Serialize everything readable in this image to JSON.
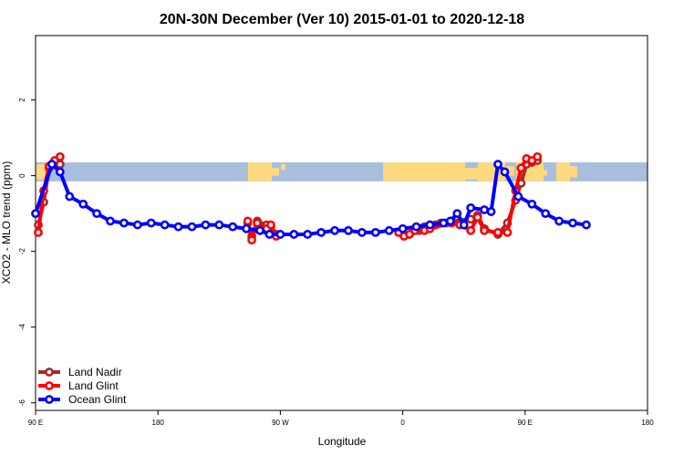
{
  "chart_data": {
    "type": "line",
    "title": "20N-30N December (Ver 10)   2015-01-01 to 2020-12-18",
    "xlabel": "Longitude",
    "ylabel": "XCO2 - MLO trend (ppm)",
    "xlim": [
      90,
      450
    ],
    "ylim": [
      -6.2,
      3.7
    ],
    "x_ticks": [
      {
        "value": 90,
        "label": "90 E"
      },
      {
        "value": 180,
        "label": "180"
      },
      {
        "value": 270,
        "label": "90 W"
      },
      {
        "value": 360,
        "label": "0"
      },
      {
        "value": 450,
        "label": "90 E"
      },
      {
        "value": 540,
        "label": "180"
      }
    ],
    "y_ticks": [
      {
        "value": 2,
        "label": "2"
      },
      {
        "value": 0,
        "label": "0"
      },
      {
        "value": -2,
        "label": "-2"
      },
      {
        "value": -4,
        "label": "-4"
      },
      {
        "value": -6,
        "label": "-6"
      }
    ],
    "map_band": {
      "ymin": -0.15,
      "ymax": 0.35,
      "ocean_color": "#A8BEDC",
      "land_color": "#FFD980"
    },
    "legend_position": "bottom-left",
    "series": [
      {
        "name": "Land Nadir",
        "color": "#A52A2A",
        "points": [
          [
            92,
            -1.3
          ],
          [
            96,
            -0.7
          ],
          [
            100,
            0.2
          ],
          [
            104,
            0.35
          ],
          [
            108,
            0.3
          ],
          [
            246,
            -1.25
          ],
          [
            249,
            -1.6
          ],
          [
            253,
            -1.2
          ],
          [
            260,
            -1.3
          ],
          [
            263,
            -1.35
          ],
          [
            267,
            -1.55
          ],
          [
            372,
            -1.45
          ],
          [
            376,
            -1.35
          ],
          [
            380,
            -1.3
          ],
          [
            384,
            -1.3
          ],
          [
            388,
            -1.25
          ],
          [
            392,
            -1.25
          ],
          [
            396,
            -1.2
          ],
          [
            410,
            -1.15
          ],
          [
            415,
            -1.05
          ],
          [
            420,
            -1.4
          ],
          [
            430,
            -1.55
          ],
          [
            437,
            -1.25
          ],
          [
            443,
            -0.65
          ],
          [
            447,
            -0.2
          ],
          [
            451,
            0.3
          ],
          [
            455,
            0.35
          ],
          [
            459,
            0.4
          ]
        ]
      },
      {
        "name": "Land Glint",
        "color": "#FF0000",
        "points": [
          [
            92,
            -1.5
          ],
          [
            96,
            -0.4
          ],
          [
            100,
            0.25
          ],
          [
            104,
            0.4
          ],
          [
            108,
            0.5
          ],
          [
            246,
            -1.2
          ],
          [
            249,
            -1.7
          ],
          [
            253,
            -1.25
          ],
          [
            260,
            -1.4
          ],
          [
            263,
            -1.3
          ],
          [
            267,
            -1.6
          ],
          [
            357,
            -1.5
          ],
          [
            361,
            -1.6
          ],
          [
            365,
            -1.55
          ],
          [
            369,
            -1.45
          ],
          [
            376,
            -1.45
          ],
          [
            380,
            -1.4
          ],
          [
            396,
            -1.25
          ],
          [
            402,
            -1.3
          ],
          [
            410,
            -1.45
          ],
          [
            415,
            -1.1
          ],
          [
            420,
            -1.45
          ],
          [
            430,
            -1.5
          ],
          [
            437,
            -1.5
          ],
          [
            443,
            -0.4
          ],
          [
            447,
            0.2
          ],
          [
            451,
            0.45
          ],
          [
            455,
            0.4
          ],
          [
            459,
            0.5
          ]
        ]
      },
      {
        "name": "Ocean Glint",
        "color": "#0000FF",
        "points": [
          [
            90,
            -1.0
          ],
          [
            102,
            0.3
          ],
          [
            108,
            0.1
          ],
          [
            115,
            -0.55
          ],
          [
            125,
            -0.75
          ],
          [
            135,
            -1.0
          ],
          [
            145,
            -1.2
          ],
          [
            155,
            -1.25
          ],
          [
            165,
            -1.3
          ],
          [
            175,
            -1.25
          ],
          [
            185,
            -1.3
          ],
          [
            195,
            -1.35
          ],
          [
            205,
            -1.35
          ],
          [
            215,
            -1.3
          ],
          [
            225,
            -1.3
          ],
          [
            235,
            -1.35
          ],
          [
            245,
            -1.4
          ],
          [
            255,
            -1.45
          ],
          [
            262,
            -1.55
          ],
          [
            270,
            -1.55
          ],
          [
            280,
            -1.55
          ],
          [
            290,
            -1.55
          ],
          [
            300,
            -1.5
          ],
          [
            310,
            -1.45
          ],
          [
            320,
            -1.45
          ],
          [
            330,
            -1.5
          ],
          [
            340,
            -1.5
          ],
          [
            350,
            -1.45
          ],
          [
            360,
            -1.4
          ],
          [
            370,
            -1.35
          ],
          [
            380,
            -1.3
          ],
          [
            390,
            -1.25
          ],
          [
            395,
            -1.2
          ],
          [
            400,
            -1.0
          ],
          [
            405,
            -1.3
          ],
          [
            410,
            -0.85
          ],
          [
            420,
            -0.9
          ],
          [
            425,
            -0.95
          ],
          [
            430,
            0.3
          ],
          [
            435,
            0.1
          ],
          [
            445,
            -0.55
          ],
          [
            455,
            -0.75
          ],
          [
            465,
            -1.0
          ],
          [
            475,
            -1.2
          ],
          [
            485,
            -1.25
          ],
          [
            495,
            -1.3
          ]
        ]
      }
    ]
  }
}
